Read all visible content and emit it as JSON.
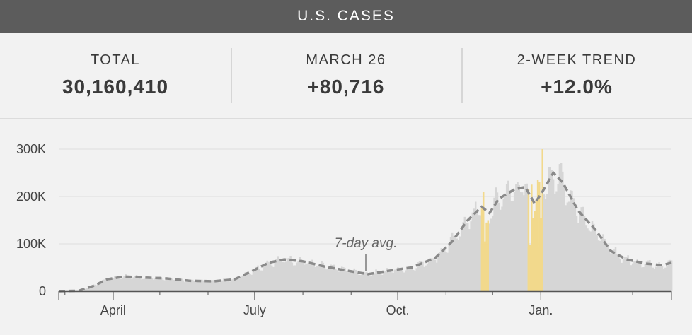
{
  "header": {
    "title": "U.S. CASES"
  },
  "stats": [
    {
      "label": "TOTAL",
      "value": "30,160,410"
    },
    {
      "label": "MARCH 26",
      "value": "+80,716"
    },
    {
      "label": "2-WEEK TREND",
      "value": "+12.0%"
    }
  ],
  "colors": {
    "bar": "#d6d6d6",
    "highlight": "#f2d98c",
    "avg_line": "#8a8a8a",
    "grid": "#dddddd",
    "header_bg": "#5c5c5c"
  },
  "chart_data": {
    "type": "bar",
    "x_axis": {
      "ticks": [
        "April",
        "July",
        "Oct.",
        "Jan."
      ]
    },
    "y_axis": {
      "ticks": [
        "0",
        "100K",
        "200K",
        "300K"
      ],
      "values": [
        0,
        100000,
        200000,
        300000
      ],
      "ylim": [
        0,
        320000
      ]
    },
    "annotation": "7-day avg.",
    "start_date": "2020-02-26",
    "end_date": "2021-03-26",
    "avg_anchors": [
      [
        "2020-02-26",
        0
      ],
      [
        "2020-03-10",
        1000
      ],
      [
        "2020-03-20",
        12000
      ],
      [
        "2020-03-28",
        25000
      ],
      [
        "2020-04-08",
        31000
      ],
      [
        "2020-04-20",
        29000
      ],
      [
        "2020-05-05",
        27000
      ],
      [
        "2020-05-20",
        22000
      ],
      [
        "2020-06-05",
        21000
      ],
      [
        "2020-06-18",
        25000
      ],
      [
        "2020-07-01",
        45000
      ],
      [
        "2020-07-10",
        60000
      ],
      [
        "2020-07-20",
        67000
      ],
      [
        "2020-08-01",
        63000
      ],
      [
        "2020-08-15",
        52000
      ],
      [
        "2020-09-01",
        42000
      ],
      [
        "2020-09-12",
        36000
      ],
      [
        "2020-09-25",
        43000
      ],
      [
        "2020-10-10",
        50000
      ],
      [
        "2020-10-25",
        70000
      ],
      [
        "2020-11-05",
        105000
      ],
      [
        "2020-11-15",
        150000
      ],
      [
        "2020-11-24",
        178000
      ],
      [
        "2020-11-29",
        165000
      ],
      [
        "2020-12-05",
        195000
      ],
      [
        "2020-12-15",
        215000
      ],
      [
        "2020-12-22",
        220000
      ],
      [
        "2020-12-28",
        185000
      ],
      [
        "2021-01-02",
        210000
      ],
      [
        "2021-01-09",
        250000
      ],
      [
        "2021-01-15",
        230000
      ],
      [
        "2021-01-25",
        170000
      ],
      [
        "2021-02-05",
        130000
      ],
      [
        "2021-02-15",
        85000
      ],
      [
        "2021-02-25",
        67000
      ],
      [
        "2021-03-10",
        58000
      ],
      [
        "2021-03-20",
        55000
      ],
      [
        "2021-03-26",
        60000
      ]
    ],
    "highlight_spans": [
      [
        "2020-11-24",
        "2020-11-28"
      ],
      [
        "2020-12-24",
        "2021-01-02"
      ]
    ],
    "highlight_bars": [
      [
        "2020-11-24",
        175000
      ],
      [
        "2020-11-25",
        210000
      ],
      [
        "2020-11-26",
        105000
      ],
      [
        "2020-11-27",
        145000
      ],
      [
        "2020-11-28",
        150000
      ],
      [
        "2020-12-24",
        215000
      ],
      [
        "2020-12-25",
        98000
      ],
      [
        "2020-12-26",
        225000
      ],
      [
        "2020-12-27",
        155000
      ],
      [
        "2020-12-28",
        170000
      ],
      [
        "2020-12-29",
        195000
      ],
      [
        "2020-12-30",
        235000
      ],
      [
        "2020-12-31",
        230000
      ],
      [
        "2021-01-01",
        155000
      ],
      [
        "2021-01-02",
        300000
      ]
    ]
  }
}
